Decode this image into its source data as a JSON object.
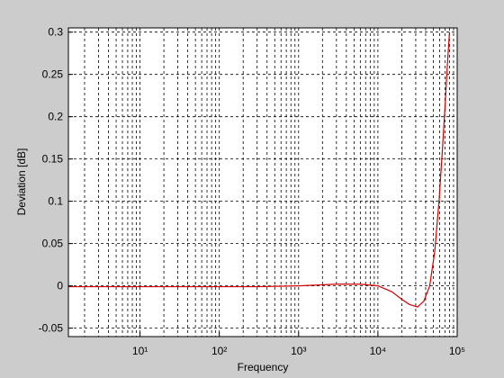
{
  "chart_data": {
    "type": "line",
    "xlabel": "Frequency",
    "ylabel": "Deviation [dB]",
    "xscale": "log",
    "xlim": [
      1.25,
      100000
    ],
    "ylim": [
      -0.06,
      0.305
    ],
    "xticks": [
      {
        "value": 10,
        "label": "10¹"
      },
      {
        "value": 100,
        "label": "10²"
      },
      {
        "value": 1000,
        "label": "10³"
      },
      {
        "value": 10000,
        "label": "10⁴"
      },
      {
        "value": 100000,
        "label": "10⁵"
      }
    ],
    "yticks": [
      -0.05,
      0,
      0.05,
      0.1,
      0.15,
      0.2,
      0.25,
      0.3
    ],
    "grid": true,
    "minor_grid": true,
    "series": [
      {
        "color": "#d40000",
        "x": [
          1.25,
          10,
          100,
          300,
          1000,
          3000,
          6000,
          10000,
          15000,
          20000,
          25000,
          31600,
          38000,
          45000,
          52000,
          59000,
          65000,
          70000,
          75000,
          80000
        ],
        "values": [
          -0.001,
          -0.001,
          -0.001,
          -0.001,
          0,
          0.002,
          0.002,
          0,
          -0.007,
          -0.016,
          -0.022,
          -0.025,
          -0.018,
          0,
          0.04,
          0.1,
          0.16,
          0.21,
          0.26,
          0.3
        ]
      }
    ]
  }
}
